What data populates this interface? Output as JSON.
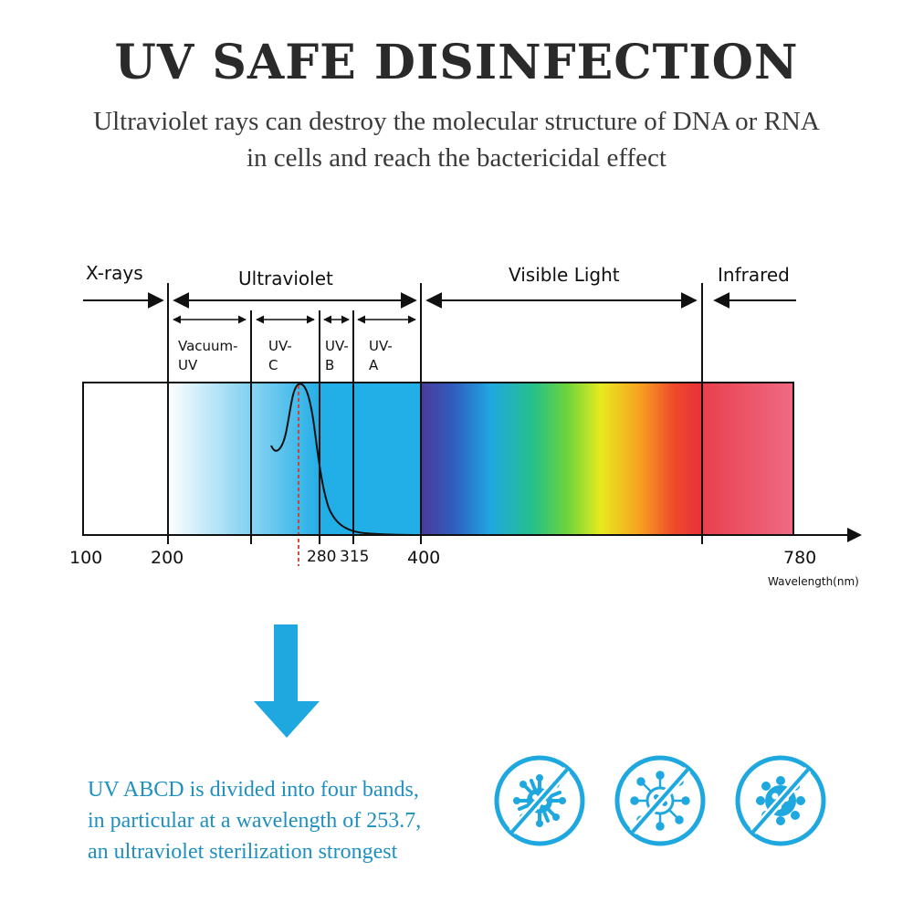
{
  "header": {
    "title": "UV SAFE DISINFECTION",
    "subtitle_line1": "Ultraviolet rays can destroy the molecular structure of DNA or RNA",
    "subtitle_line2": "in cells and reach the bactericidal effect"
  },
  "diagram": {
    "regions": {
      "xrays": "X-rays",
      "ultraviolet": "Ultraviolet",
      "visible": "Visible Light",
      "infrared": "Infrared"
    },
    "bands": {
      "vacuum_line1": "Vacuum-",
      "vacuum_line2": "UV",
      "uvc_line1": "UV-",
      "uvc_line2": "C",
      "uvb_line1": "UV-",
      "uvb_line2": "B",
      "uva_line1": "UV-",
      "uva_line2": "A"
    },
    "ticks": {
      "t100": "100",
      "t200": "200",
      "t280": "280",
      "t315": "315",
      "t400": "400",
      "t780": "780"
    },
    "axis_label": "Wavelength(nm)"
  },
  "footer": {
    "line1": "UV ABCD is divided into four bands,",
    "line2": "in particular at a wavelength of 253.7,",
    "line3": "an ultraviolet sterilization strongest"
  },
  "colors": {
    "accent_blue": "#1fa8e0",
    "text_blue": "#1f8fc0"
  },
  "icons": [
    "virus-crossed-icon",
    "bacteria-crossed-icon",
    "germ-crossed-icon"
  ]
}
